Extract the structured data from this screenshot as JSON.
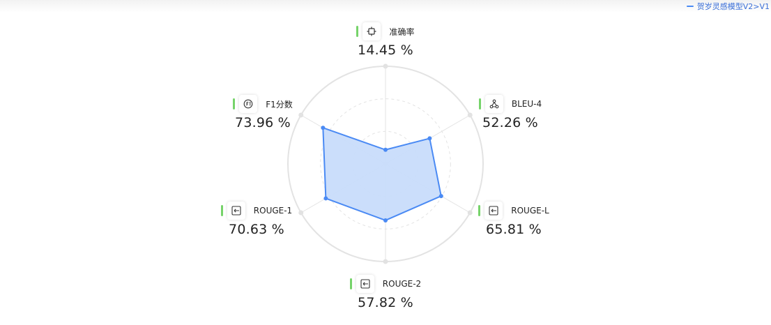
{
  "legend": {
    "series_name": "贺岁灵感模型V2>V1",
    "color": "#4a8af4"
  },
  "chart_data": {
    "type": "radar",
    "title": "",
    "axes": [
      "准确率",
      "BLEU-4",
      "ROUGE-L",
      "ROUGE-2",
      "ROUGE-1",
      "F1分数"
    ],
    "range": [
      0,
      100
    ],
    "grid": true,
    "legend_position": "top-right",
    "series": [
      {
        "name": "贺岁灵感模型V2>V1",
        "values": [
          14.45,
          52.26,
          65.81,
          57.82,
          70.63,
          73.96
        ]
      }
    ]
  },
  "metrics": [
    {
      "label": "准确率",
      "value": "14.45 %",
      "icon": "target-icon"
    },
    {
      "label": "BLEU-4",
      "value": "52.26 %",
      "icon": "network-icon"
    },
    {
      "label": "ROUGE-L",
      "value": "65.81 %",
      "icon": "arrow-box-icon"
    },
    {
      "label": "ROUGE-2",
      "value": "57.82 %",
      "icon": "arrow-box-icon"
    },
    {
      "label": "ROUGE-1",
      "value": "70.63 %",
      "icon": "arrow-box-icon"
    },
    {
      "label": "F1分数",
      "value": "73.96 %",
      "icon": "f1-circle-icon"
    }
  ],
  "colors": {
    "series_line": "#4a8af4",
    "series_fill": "#c8dcfb",
    "grid": "#e3e3e3",
    "accent_bar": "#76d36a"
  }
}
